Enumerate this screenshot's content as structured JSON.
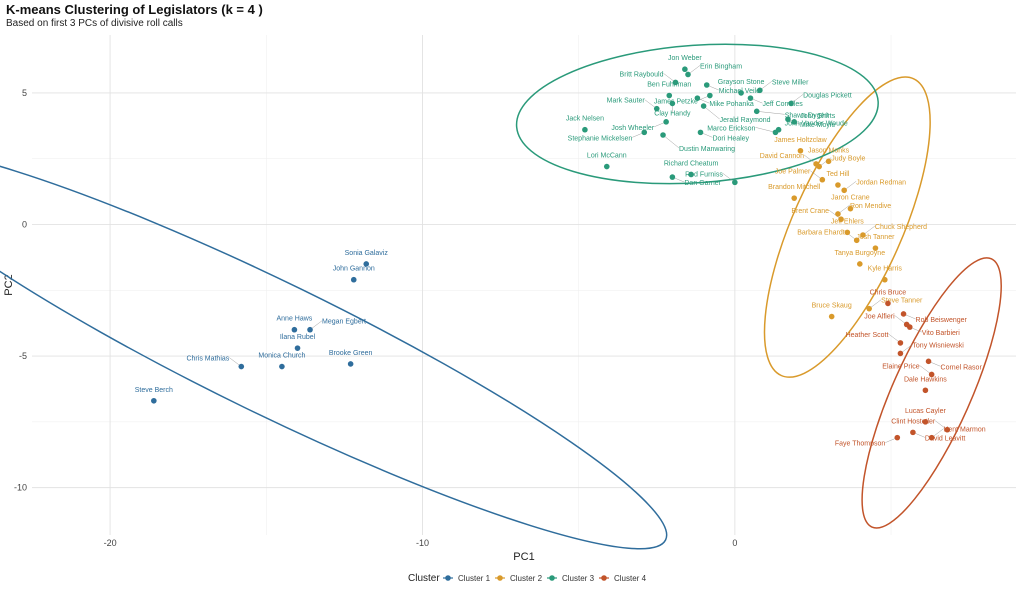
{
  "chart_data": {
    "type": "scatter",
    "title": "K-means Clustering of Legislators (k = 4 )",
    "subtitle": "Based on first 3 PCs of divisive roll calls",
    "xlabel": "PC1",
    "ylabel": "PC2",
    "xlim": [
      -22.5,
      9
    ],
    "ylim": [
      -11.8,
      7.2
    ],
    "x_ticks": [
      -20,
      -10,
      0
    ],
    "y_ticks": [
      -10,
      -5,
      0,
      5
    ],
    "grid": true,
    "legend": {
      "title": "Cluster",
      "position": "bottom",
      "items": [
        "Cluster 1",
        "Cluster 2",
        "Cluster 3",
        "Cluster 4"
      ]
    },
    "colors": {
      "Cluster 1": "#2f6d9c",
      "Cluster 2": "#d99a2b",
      "Cluster 3": "#2a9a7a",
      "Cluster 4": "#c2542a"
    },
    "series": [
      {
        "name": "Cluster 1",
        "points": [
          {
            "label": "Sonia Galaviz",
            "x": -11.8,
            "y": -1.5
          },
          {
            "label": "John Gannon",
            "x": -12.2,
            "y": -2.1
          },
          {
            "label": "Anne Haws",
            "x": -14.1,
            "y": -4.0
          },
          {
            "label": "Megan Egbert",
            "x": -13.6,
            "y": -4.0
          },
          {
            "label": "Ilana Rubel",
            "x": -14.0,
            "y": -4.7
          },
          {
            "label": "Monica Church",
            "x": -14.5,
            "y": -5.4
          },
          {
            "label": "Chris Mathias",
            "x": -15.8,
            "y": -5.4
          },
          {
            "label": "Brooke Green",
            "x": -12.3,
            "y": -5.3
          },
          {
            "label": "Steve Berch",
            "x": -18.6,
            "y": -6.7
          }
        ]
      },
      {
        "name": "Cluster 2",
        "points": [
          {
            "label": "James Holtzclaw",
            "x": 2.1,
            "y": 2.8
          },
          {
            "label": "Jason Monks",
            "x": 3.0,
            "y": 2.4
          },
          {
            "label": "David Cannon",
            "x": 2.6,
            "y": 2.3
          },
          {
            "label": "Judy Boyle",
            "x": 2.7,
            "y": 2.2
          },
          {
            "label": "Ted Hill",
            "x": 3.3,
            "y": 1.5
          },
          {
            "label": "Joe Palmer",
            "x": 2.8,
            "y": 1.7
          },
          {
            "label": "Jordan Redman",
            "x": 3.5,
            "y": 1.3
          },
          {
            "label": "Brandon Mitchell",
            "x": 1.9,
            "y": 1.0
          },
          {
            "label": "Jaron Crane",
            "x": 3.7,
            "y": 0.6
          },
          {
            "label": "Ron Mendive",
            "x": 3.3,
            "y": 0.4
          },
          {
            "label": "Brent Crane",
            "x": 3.4,
            "y": 0.2
          },
          {
            "label": "Jeff Ehlers",
            "x": 3.6,
            "y": -0.3
          },
          {
            "label": "Chuck Shepherd",
            "x": 4.1,
            "y": -0.4
          },
          {
            "label": "Barbara Ehardt",
            "x": 3.9,
            "y": -0.6
          },
          {
            "label": "Josh Tanner",
            "x": 4.5,
            "y": -0.9
          },
          {
            "label": "Tanya Burgoyne",
            "x": 4.0,
            "y": -1.5
          },
          {
            "label": "Kyle Harris",
            "x": 4.8,
            "y": -2.1
          },
          {
            "label": "Bruce Skaug",
            "x": 3.1,
            "y": -3.5
          },
          {
            "label": "Steve Tanner",
            "x": 4.3,
            "y": -3.2
          }
        ]
      },
      {
        "name": "Cluster 3",
        "points": [
          {
            "label": "Jon Weber",
            "x": -1.6,
            "y": 5.9
          },
          {
            "label": "Erin Bingham",
            "x": -1.5,
            "y": 5.7
          },
          {
            "label": "Britt Raybould",
            "x": -1.9,
            "y": 5.4
          },
          {
            "label": "Grayson Stone",
            "x": 0.2,
            "y": 5.0
          },
          {
            "label": "Michael Veile",
            "x": -0.9,
            "y": 5.3
          },
          {
            "label": "Steve Miller",
            "x": 0.8,
            "y": 5.1
          },
          {
            "label": "Ben Fuhriman",
            "x": -2.1,
            "y": 4.9
          },
          {
            "label": "Mike Pohanka",
            "x": -1.2,
            "y": 4.8
          },
          {
            "label": "James Petzke",
            "x": -0.8,
            "y": 4.9
          },
          {
            "label": "Jeff Cornilles",
            "x": 0.5,
            "y": 4.8
          },
          {
            "label": "Douglas Pickett",
            "x": 1.8,
            "y": 4.6
          },
          {
            "label": "Clay Handy",
            "x": -2.0,
            "y": 4.6
          },
          {
            "label": "Mark Sauter",
            "x": -2.5,
            "y": 4.4
          },
          {
            "label": "Jerald Raymond",
            "x": -1.0,
            "y": 4.5
          },
          {
            "label": "Shawn Dygert",
            "x": 0.7,
            "y": 4.3
          },
          {
            "label": "Mike Moyle",
            "x": 1.7,
            "y": 4.0
          },
          {
            "label": "John Shirts",
            "x": 1.9,
            "y": 3.9
          },
          {
            "label": "Jack Nelsen",
            "x": -4.8,
            "y": 3.6
          },
          {
            "label": "Josh Wheeler",
            "x": -2.2,
            "y": 3.9
          },
          {
            "label": "Dori Healey",
            "x": -1.1,
            "y": 3.5
          },
          {
            "label": "John Vander Woude",
            "x": 1.4,
            "y": 3.6
          },
          {
            "label": "Stephanie Mickelsen",
            "x": -2.9,
            "y": 3.5
          },
          {
            "label": "Dustin Manwaring",
            "x": -2.3,
            "y": 3.4
          },
          {
            "label": "Marco Erickson",
            "x": 1.3,
            "y": 3.5
          },
          {
            "label": "Lori McCann",
            "x": -4.1,
            "y": 2.2
          },
          {
            "label": "Richard Cheatum",
            "x": -1.4,
            "y": 1.9
          },
          {
            "label": "Dan Garner",
            "x": -2.0,
            "y": 1.8
          },
          {
            "label": "Rod Furniss",
            "x": 0.0,
            "y": 1.6
          }
        ]
      },
      {
        "name": "Cluster 4",
        "points": [
          {
            "label": "Chris Bruce",
            "x": 4.9,
            "y": -3.0
          },
          {
            "label": "Rob Beiswenger",
            "x": 5.4,
            "y": -3.4
          },
          {
            "label": "Joe Alfieri",
            "x": 5.5,
            "y": -3.8
          },
          {
            "label": "Vito Barbieri",
            "x": 5.6,
            "y": -3.9
          },
          {
            "label": "Heather Scott",
            "x": 5.3,
            "y": -4.5
          },
          {
            "label": "Tony Wisniewski",
            "x": 5.3,
            "y": -4.9
          },
          {
            "label": "Cornel Rasor",
            "x": 6.2,
            "y": -5.2
          },
          {
            "label": "Elaine Price",
            "x": 6.3,
            "y": -5.7
          },
          {
            "label": "Dale Hawkins",
            "x": 6.1,
            "y": -6.3
          },
          {
            "label": "Lucas Cayler",
            "x": 6.1,
            "y": -7.5
          },
          {
            "label": "Clint Hostetler",
            "x": 6.8,
            "y": -7.8
          },
          {
            "label": "David Leavitt",
            "x": 5.7,
            "y": -7.9
          },
          {
            "label": "Faye Thompson",
            "x": 5.2,
            "y": -8.1
          },
          {
            "label": "Kent Marmon",
            "x": 6.3,
            "y": -8.1
          }
        ]
      }
    ],
    "ellipses": [
      {
        "series": "Cluster 1",
        "cx": -14.8,
        "cy": -4.7,
        "rx": 14.0,
        "ry": 2.1,
        "angle_deg": 26
      },
      {
        "series": "Cluster 2",
        "cx": 3.6,
        "cy": -0.1,
        "rx": 5.2,
        "ry": 1.75,
        "angle_deg": -66
      },
      {
        "series": "Cluster 3",
        "cx": -1.2,
        "cy": 4.2,
        "rx": 5.8,
        "ry": 2.2,
        "angle_deg": -4
      },
      {
        "series": "Cluster 4",
        "cx": 6.3,
        "cy": -6.4,
        "rx": 4.7,
        "ry": 1.25,
        "angle_deg": -66
      }
    ]
  }
}
